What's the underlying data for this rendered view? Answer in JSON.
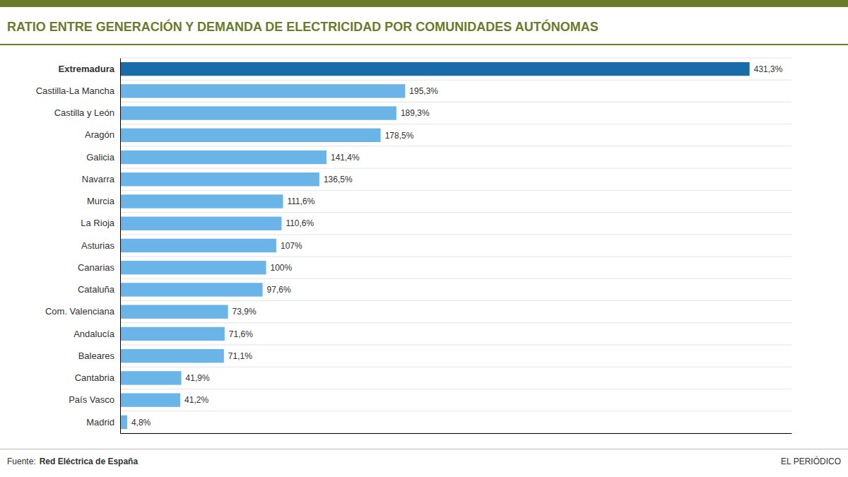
{
  "chart_data": {
    "type": "bar",
    "orientation": "horizontal",
    "title": "RATIO ENTRE GENERACIÓN Y DEMANDA DE ELECTRICIDAD POR COMUNIDADES AUTÓNOMAS",
    "categories": [
      "Extremadura",
      "Castilla-La Mancha",
      "Castilla y León",
      "Aragón",
      "Galicia",
      "Navarra",
      "Murcia",
      "La Rioja",
      "Asturias",
      "Canarias",
      "Cataluña",
      "Com. Valenciana",
      "Andalucía",
      "Baleares",
      "Cantabria",
      "País Vasco",
      "Madrid"
    ],
    "values": [
      431.3,
      195.3,
      189.3,
      178.5,
      141.4,
      136.5,
      111.6,
      110.6,
      107.0,
      100.0,
      97.6,
      73.9,
      71.6,
      71.1,
      41.9,
      41.2,
      4.8
    ],
    "value_labels": [
      "431,3%",
      "195,3%",
      "189,3%",
      "178,5%",
      "141,4%",
      "136,5%",
      "111,6%",
      "110,6%",
      "107%",
      "100%",
      "97,6%",
      "73,9%",
      "71,6%",
      "71,1%",
      "41,9%",
      "41,2%",
      "4,8%"
    ],
    "colors": [
      "#1a6ca8",
      "#6ab4e8",
      "#6ab4e8",
      "#6ab4e8",
      "#6ab4e8",
      "#6ab4e8",
      "#6ab4e8",
      "#6ab4e8",
      "#6ab4e8",
      "#6ab4e8",
      "#6ab4e8",
      "#6ab4e8",
      "#6ab4e8",
      "#6ab4e8",
      "#6ab4e8",
      "#6ab4e8",
      "#6ab4e8"
    ],
    "xlim": [
      0,
      460
    ],
    "tick_labels": "y",
    "data_labels": true,
    "annotations": [
      "Fuente:",
      "Red Eléctrica de España",
      "EL PERIÓDICO"
    ]
  }
}
